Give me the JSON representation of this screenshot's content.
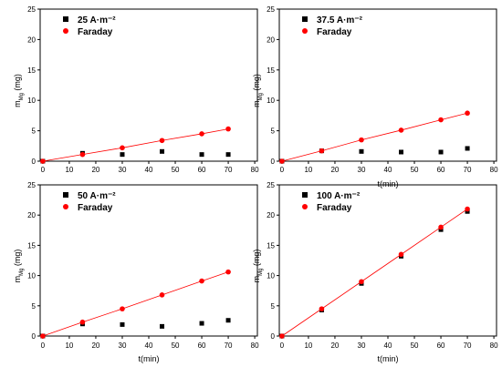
{
  "chart_data": [
    {
      "type": "scatter",
      "legend_position": "top-left",
      "xlabel": "",
      "ylabel": "m_Mg (mg)",
      "xlim": [
        -1,
        81
      ],
      "ylim": [
        0,
        25
      ],
      "xticks": [
        0,
        10,
        20,
        30,
        40,
        50,
        60,
        70,
        80
      ],
      "yticks": [
        0,
        5,
        10,
        15,
        20,
        25
      ],
      "series": [
        {
          "name": "25 A·m⁻²",
          "marker": "square",
          "color": "#000000",
          "x": [
            0,
            15,
            30,
            45,
            60,
            70
          ],
          "y": [
            0,
            1.3,
            1.1,
            1.6,
            1.1,
            1.1
          ]
        },
        {
          "name": "Faraday",
          "marker": "circle",
          "color": "#ff0000",
          "line": true,
          "x": [
            0,
            15,
            30,
            45,
            60,
            70
          ],
          "y": [
            0,
            1.1,
            2.2,
            3.4,
            4.5,
            5.3
          ]
        }
      ]
    },
    {
      "type": "scatter",
      "legend_position": "top-left",
      "xlabel": "t(min)",
      "ylabel": "m_Mg (mg)",
      "xlim": [
        -1,
        81
      ],
      "ylim": [
        0,
        25
      ],
      "xticks": [
        0,
        10,
        20,
        30,
        40,
        50,
        60,
        70,
        80
      ],
      "yticks": [
        0,
        5,
        10,
        15,
        20,
        25
      ],
      "series": [
        {
          "name": "37.5 A·m⁻²",
          "marker": "square",
          "color": "#000000",
          "x": [
            0,
            15,
            30,
            45,
            60,
            70
          ],
          "y": [
            0,
            1.7,
            1.6,
            1.5,
            1.5,
            2.1
          ]
        },
        {
          "name": "Faraday",
          "marker": "circle",
          "color": "#ff0000",
          "line": true,
          "x": [
            0,
            15,
            30,
            45,
            60,
            70
          ],
          "y": [
            0,
            1.7,
            3.5,
            5.1,
            6.8,
            7.9
          ]
        }
      ]
    },
    {
      "type": "scatter",
      "legend_position": "top-left",
      "xlabel": "t(min)",
      "ylabel": "m_Mg (mg)",
      "xlim": [
        -1,
        81
      ],
      "ylim": [
        0,
        25
      ],
      "xticks": [
        0,
        10,
        20,
        30,
        40,
        50,
        60,
        70,
        80
      ],
      "yticks": [
        0,
        5,
        10,
        15,
        20,
        25
      ],
      "series": [
        {
          "name": "50 A·m⁻²",
          "marker": "square",
          "color": "#000000",
          "x": [
            0,
            15,
            30,
            45,
            60,
            70
          ],
          "y": [
            0,
            2.0,
            1.9,
            1.6,
            2.1,
            2.6
          ]
        },
        {
          "name": "Faraday",
          "marker": "circle",
          "color": "#ff0000",
          "line": true,
          "x": [
            0,
            15,
            30,
            45,
            60,
            70
          ],
          "y": [
            0,
            2.3,
            4.5,
            6.8,
            9.1,
            10.6
          ]
        }
      ]
    },
    {
      "type": "scatter",
      "legend_position": "top-left",
      "xlabel": "t(min)",
      "ylabel": "m_Mg (mg)",
      "xlim": [
        -1,
        81
      ],
      "ylim": [
        0,
        25
      ],
      "xticks": [
        0,
        10,
        20,
        30,
        40,
        50,
        60,
        70,
        80
      ],
      "yticks": [
        0,
        5,
        10,
        15,
        20,
        25
      ],
      "series": [
        {
          "name": "100 A·m⁻²",
          "marker": "square",
          "color": "#000000",
          "x": [
            0,
            15,
            30,
            45,
            60,
            70
          ],
          "y": [
            0,
            4.3,
            8.7,
            13.2,
            17.6,
            20.6
          ]
        },
        {
          "name": "Faraday",
          "marker": "circle",
          "color": "#ff0000",
          "line": true,
          "x": [
            0,
            15,
            30,
            45,
            60,
            70
          ],
          "y": [
            0,
            4.5,
            9.0,
            13.5,
            18.0,
            21.0
          ]
        }
      ]
    }
  ]
}
